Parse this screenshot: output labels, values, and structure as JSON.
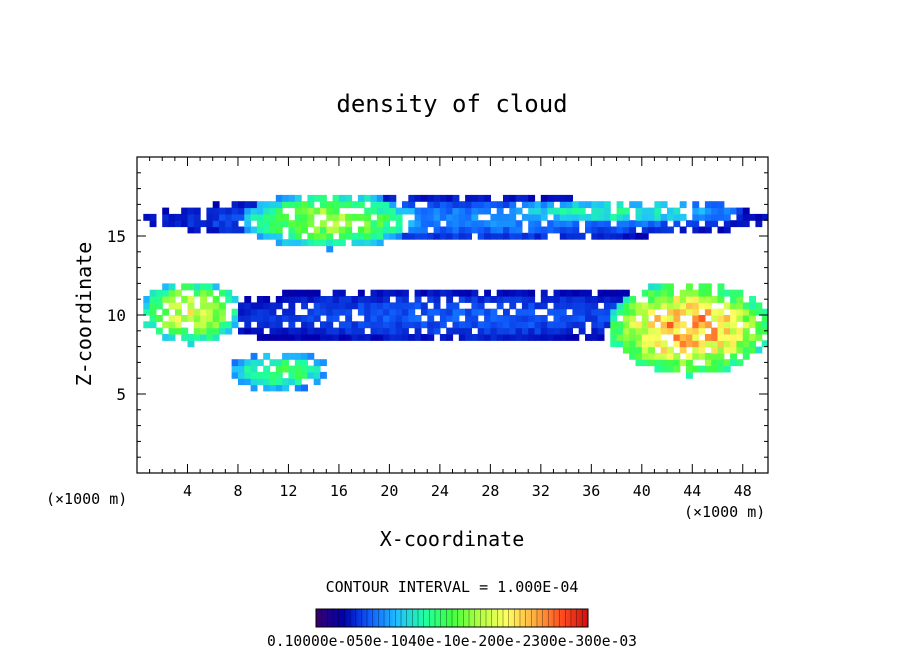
{
  "chart_data": {
    "type": "heatmap",
    "title": "density of cloud",
    "xlabel": "X-coordinate",
    "ylabel": "Z-coordinate",
    "x_unit": "(×1000 m)",
    "y_unit": "(×1000 m)",
    "xlim": [
      0,
      50
    ],
    "ylim": [
      0,
      20
    ],
    "x_ticks": [
      4,
      8,
      12,
      16,
      20,
      24,
      28,
      32,
      36,
      40,
      44,
      48
    ],
    "y_ticks": [
      5,
      10,
      15
    ],
    "contour_interval_text": "CONTOUR INTERVAL = 1.000E-04",
    "colorbar": {
      "min": 0.0,
      "max": 0.0012,
      "labels_text": "0.10000e-050e-1040e-10e-200e-2300e-300e-03",
      "colors": [
        "#3a006a",
        "#0000b0",
        "#1060ff",
        "#20c0ff",
        "#20ffa0",
        "#40ff40",
        "#b0ff40",
        "#ffff60",
        "#ffb040",
        "#ff5020",
        "#d01010"
      ]
    },
    "cloud_regions": [
      {
        "name": "upper-band",
        "x": [
          0,
          50
        ],
        "z": [
          14.5,
          17.3
        ],
        "level": 0.25
      },
      {
        "name": "upper-left-core",
        "x": [
          8,
          22
        ],
        "z": [
          14,
          17.6
        ],
        "level": 0.6
      },
      {
        "name": "upper-right-core",
        "x": [
          27,
          48
        ],
        "z": [
          15.5,
          17.2
        ],
        "level": 0.4
      },
      {
        "name": "mid-band",
        "x": [
          0,
          50
        ],
        "z": [
          8,
          11.5
        ],
        "level": 0.2
      },
      {
        "name": "left-core",
        "x": [
          0,
          8
        ],
        "z": [
          8,
          12
        ],
        "level": 0.7
      },
      {
        "name": "lower-left-core",
        "x": [
          7,
          15
        ],
        "z": [
          5,
          7.5
        ],
        "level": 0.5
      },
      {
        "name": "right-core",
        "x": [
          37,
          50
        ],
        "z": [
          6,
          12
        ],
        "level": 0.85
      }
    ]
  }
}
